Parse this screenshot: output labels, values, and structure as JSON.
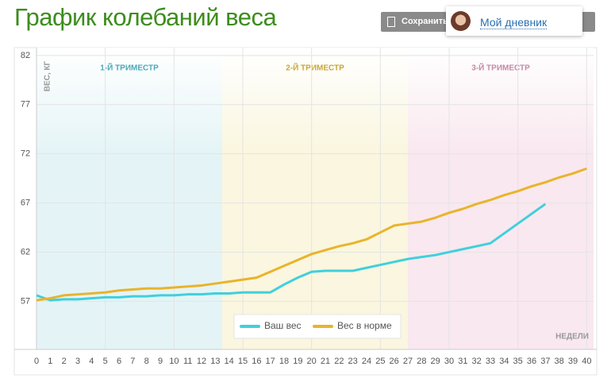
{
  "header": {
    "title": "График колебаний веса",
    "save_button": "Сохранить",
    "popup_link": "Мой дневник"
  },
  "chart_data": {
    "type": "line",
    "y_label": "ВЕС, КГ",
    "x_label": "НЕДЕЛИ",
    "trimesters": [
      {
        "label": "1-Й ТРИМЕСТР",
        "start": 0,
        "end": 13.5,
        "color": "#e4f4f6"
      },
      {
        "label": "2-Й ТРИМЕСТР",
        "start": 13.5,
        "end": 27,
        "color": "#faf6df"
      },
      {
        "label": "3-Й ТРИМЕСТР",
        "start": 27,
        "end": 40.5,
        "color": "#f9e8ef"
      }
    ],
    "x": [
      0,
      1,
      2,
      3,
      4,
      5,
      6,
      7,
      8,
      9,
      10,
      11,
      12,
      13,
      14,
      15,
      16,
      17,
      18,
      19,
      20,
      21,
      22,
      23,
      24,
      25,
      26,
      27,
      28,
      29,
      30,
      31,
      32,
      33,
      34,
      35,
      36,
      37,
      38,
      39,
      40
    ],
    "xticks": [
      0,
      1,
      2,
      3,
      4,
      5,
      6,
      7,
      8,
      9,
      10,
      11,
      12,
      13,
      14,
      15,
      16,
      17,
      18,
      19,
      20,
      21,
      22,
      23,
      24,
      25,
      26,
      27,
      28,
      29,
      30,
      31,
      32,
      33,
      34,
      35,
      36,
      37,
      38,
      39,
      40
    ],
    "x_gridlines": [
      5,
      10,
      15,
      20,
      25,
      30,
      35,
      40
    ],
    "xlim": [
      0,
      40.5
    ],
    "ylim": [
      52.1,
      82.8
    ],
    "yticks": [
      57,
      62,
      67,
      72,
      77,
      82
    ],
    "grid": true,
    "legend": "bottom",
    "series": [
      {
        "name": "Ваш вес",
        "color": "#3fd0dd",
        "values": [
          57.6,
          57.1,
          57.2,
          57.2,
          57.3,
          57.4,
          57.4,
          57.5,
          57.5,
          57.6,
          57.6,
          57.7,
          57.7,
          57.8,
          57.8,
          57.9,
          57.9,
          57.9,
          58.7,
          59.4,
          60.0,
          60.1,
          60.1,
          60.1,
          60.4,
          60.7,
          61.0,
          61.3,
          61.5,
          61.7,
          62.0,
          62.3,
          62.6,
          62.9,
          63.9,
          64.9,
          65.9,
          66.9,
          null,
          null,
          null
        ]
      },
      {
        "name": "Вес в норме",
        "color": "#e9b42b",
        "values": [
          57.1,
          57.3,
          57.6,
          57.7,
          57.8,
          57.9,
          58.1,
          58.2,
          58.3,
          58.3,
          58.4,
          58.5,
          58.6,
          58.8,
          59.0,
          59.2,
          59.4,
          60.0,
          60.6,
          61.2,
          61.8,
          62.2,
          62.6,
          62.9,
          63.3,
          64.0,
          64.7,
          64.9,
          65.1,
          65.5,
          66.0,
          66.4,
          66.9,
          67.3,
          67.8,
          68.2,
          68.7,
          69.1,
          69.6,
          70.0,
          70.5
        ]
      }
    ]
  }
}
